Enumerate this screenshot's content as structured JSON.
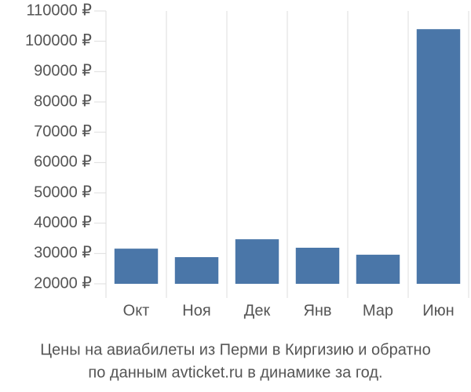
{
  "chart_data": {
    "type": "bar",
    "title": "Цены на авиабилеты из Перми в Киргизию и обратно",
    "subtitle": "по данным avticket.ru в динамике за год.",
    "categories": [
      "Окт",
      "Ноя",
      "Дек",
      "Янв",
      "Мар",
      "Июн"
    ],
    "values": [
      31600,
      28800,
      34700,
      31900,
      29600,
      104000
    ],
    "color": "#4a76a8",
    "ylim": [
      20000,
      110000
    ],
    "yticks": [
      {
        "value": 20000,
        "label": "20000 ₽"
      },
      {
        "value": 30000,
        "label": "30000 ₽"
      },
      {
        "value": 40000,
        "label": "40000 ₽"
      },
      {
        "value": 50000,
        "label": "50000 ₽"
      },
      {
        "value": 60000,
        "label": "60000 ₽"
      },
      {
        "value": 70000,
        "label": "70000 ₽"
      },
      {
        "value": 80000,
        "label": "80000 ₽"
      },
      {
        "value": 90000,
        "label": "90000 ₽"
      },
      {
        "value": 100000,
        "label": "100000 ₽"
      },
      {
        "value": 110000,
        "label": "110000 ₽"
      }
    ],
    "grid": true
  }
}
